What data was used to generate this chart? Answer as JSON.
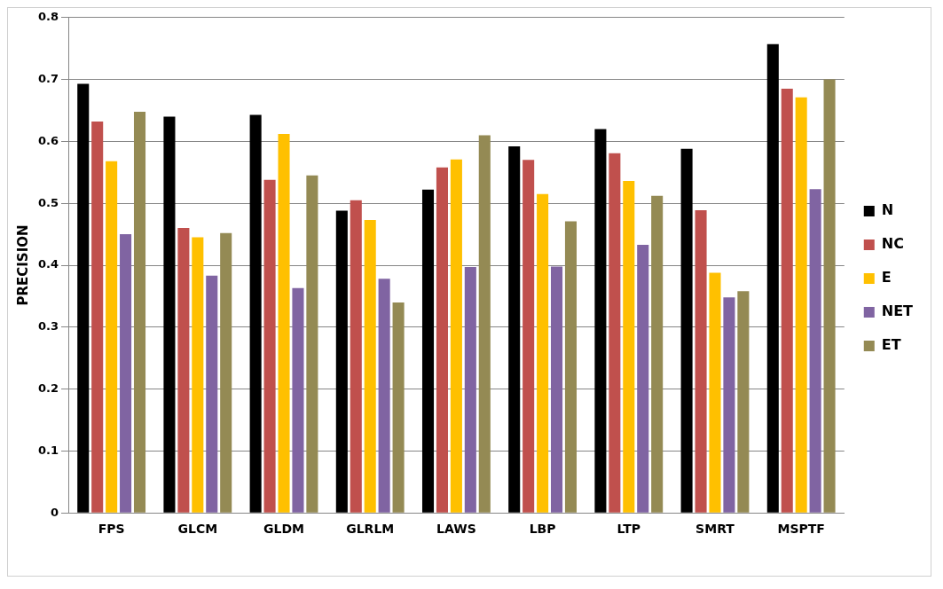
{
  "chart_data": {
    "type": "bar",
    "ylabel": "PRECISION",
    "categories": [
      "FPS",
      "GLCM",
      "GLDM",
      "GLRLM",
      "LAWS",
      "LBP",
      "LTP",
      "SMRT",
      "MSPTF"
    ],
    "series": [
      {
        "name": "N",
        "color": "#000000",
        "values": [
          0.693,
          0.64,
          0.643,
          0.488,
          0.522,
          0.592,
          0.62,
          0.588,
          0.757
        ]
      },
      {
        "name": "NC",
        "color": "#c0504d",
        "values": [
          0.632,
          0.46,
          0.538,
          0.505,
          0.558,
          0.57,
          0.581,
          0.489,
          0.685
        ]
      },
      {
        "name": "E",
        "color": "#ffc000",
        "values": [
          0.568,
          0.445,
          0.612,
          0.473,
          0.571,
          0.515,
          0.536,
          0.388,
          0.671
        ]
      },
      {
        "name": "NET",
        "color": "#8064a2",
        "values": [
          0.45,
          0.383,
          0.363,
          0.378,
          0.397,
          0.398,
          0.433,
          0.348,
          0.523
        ]
      },
      {
        "name": "ET",
        "color": "#948a54",
        "values": [
          0.648,
          0.452,
          0.545,
          0.34,
          0.61,
          0.471,
          0.512,
          0.358,
          0.7
        ]
      }
    ],
    "ylim": [
      0,
      0.8
    ],
    "yticks": [
      0,
      0.1,
      0.2,
      0.3,
      0.4,
      0.5,
      0.6,
      0.7,
      0.8
    ],
    "grid": "y",
    "legend": "right"
  }
}
